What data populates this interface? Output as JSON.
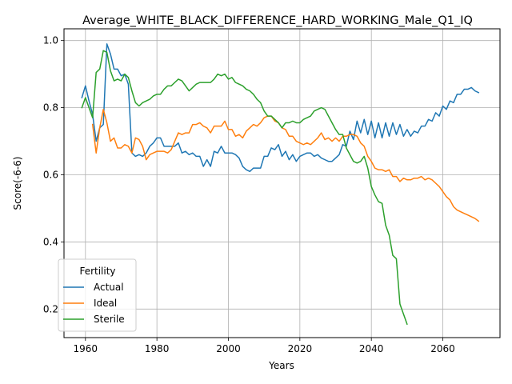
{
  "chart_data": {
    "type": "line",
    "title": "Average_WHITE_BLACK_DIFFERENCE_HARD_WORKING_Male_Q1_IQ",
    "xlabel": "Years",
    "ylabel": "Score(-6-6)",
    "xlim": [
      1954,
      2076
    ],
    "ylim": [
      0.115,
      1.035
    ],
    "xticks": [
      1960,
      1980,
      2000,
      2020,
      2040,
      2060
    ],
    "yticks": [
      0.2,
      0.4,
      0.6,
      0.8,
      1.0
    ],
    "ytick_labels": [
      "0.2",
      "0.4",
      "0.6",
      "0.8",
      "1.0"
    ],
    "grid": true,
    "legend": {
      "title": "Fertility",
      "placement": "lower-left"
    },
    "series": [
      {
        "name": "Actual",
        "color": "#1f77b4",
        "x": [
          1959,
          1960,
          1961,
          1962,
          1963,
          1964,
          1965,
          1966,
          1967,
          1968,
          1969,
          1970,
          1971,
          1972,
          1973,
          1974,
          1975,
          1976,
          1977,
          1978,
          1979,
          1980,
          1981,
          1982,
          1983,
          1984,
          1985,
          1986,
          1987,
          1988,
          1989,
          1990,
          1991,
          1992,
          1993,
          1994,
          1995,
          1996,
          1997,
          1998,
          1999,
          2000,
          2001,
          2002,
          2003,
          2004,
          2005,
          2006,
          2007,
          2008,
          2009,
          2010,
          2011,
          2012,
          2013,
          2014,
          2015,
          2016,
          2017,
          2018,
          2019,
          2020,
          2021,
          2022,
          2023,
          2024,
          2025,
          2026,
          2027,
          2028,
          2029,
          2030,
          2031,
          2032,
          2033,
          2034,
          2035,
          2036,
          2037,
          2038,
          2039,
          2040,
          2041,
          2042,
          2043,
          2044,
          2045,
          2046,
          2047,
          2048,
          2049,
          2050,
          2051,
          2052,
          2053,
          2054,
          2055,
          2056,
          2057,
          2058,
          2059,
          2060,
          2061,
          2062,
          2063,
          2064,
          2065,
          2066,
          2067,
          2068,
          2069,
          2070
        ],
        "y": [
          0.83,
          0.865,
          0.82,
          0.78,
          0.7,
          0.74,
          0.75,
          0.99,
          0.96,
          0.915,
          0.915,
          0.895,
          0.9,
          0.87,
          0.665,
          0.655,
          0.66,
          0.655,
          0.665,
          0.685,
          0.695,
          0.71,
          0.71,
          0.685,
          0.685,
          0.685,
          0.685,
          0.695,
          0.665,
          0.67,
          0.66,
          0.665,
          0.655,
          0.655,
          0.625,
          0.645,
          0.625,
          0.67,
          0.665,
          0.685,
          0.665,
          0.665,
          0.665,
          0.66,
          0.65,
          0.625,
          0.615,
          0.61,
          0.62,
          0.62,
          0.62,
          0.655,
          0.655,
          0.68,
          0.675,
          0.69,
          0.655,
          0.67,
          0.645,
          0.66,
          0.64,
          0.655,
          0.66,
          0.665,
          0.665,
          0.655,
          0.66,
          0.65,
          0.645,
          0.64,
          0.64,
          0.65,
          0.66,
          0.69,
          0.685,
          0.73,
          0.705,
          0.76,
          0.725,
          0.765,
          0.72,
          0.76,
          0.71,
          0.755,
          0.71,
          0.755,
          0.715,
          0.755,
          0.72,
          0.75,
          0.715,
          0.735,
          0.715,
          0.73,
          0.725,
          0.745,
          0.745,
          0.765,
          0.76,
          0.785,
          0.775,
          0.805,
          0.795,
          0.82,
          0.815,
          0.84,
          0.84,
          0.855,
          0.855,
          0.86,
          0.85,
          0.845
        ]
      },
      {
        "name": "Ideal",
        "color": "#ff7f0e",
        "x": [
          1962,
          1963,
          1964,
          1965,
          1966,
          1967,
          1968,
          1969,
          1970,
          1971,
          1972,
          1973,
          1974,
          1975,
          1976,
          1977,
          1978,
          1979,
          1980,
          1981,
          1982,
          1983,
          1984,
          1985,
          1986,
          1987,
          1988,
          1989,
          1990,
          1991,
          1992,
          1993,
          1994,
          1995,
          1996,
          1997,
          1998,
          1999,
          2000,
          2001,
          2002,
          2003,
          2004,
          2005,
          2006,
          2007,
          2008,
          2009,
          2010,
          2011,
          2012,
          2013,
          2014,
          2015,
          2016,
          2017,
          2018,
          2019,
          2020,
          2021,
          2022,
          2023,
          2024,
          2025,
          2026,
          2027,
          2028,
          2029,
          2030,
          2031,
          2032,
          2033,
          2034,
          2035,
          2036,
          2037,
          2038,
          2039,
          2040,
          2041,
          2042,
          2043,
          2044,
          2045,
          2046,
          2047,
          2048,
          2049,
          2050,
          2051,
          2052,
          2053,
          2054,
          2055,
          2056,
          2057,
          2058,
          2059,
          2060,
          2061,
          2062,
          2063,
          2064,
          2065,
          2066,
          2067,
          2068,
          2069,
          2070
        ],
        "y": [
          0.75,
          0.665,
          0.74,
          0.795,
          0.755,
          0.7,
          0.71,
          0.68,
          0.68,
          0.69,
          0.685,
          0.665,
          0.71,
          0.705,
          0.685,
          0.645,
          0.66,
          0.665,
          0.67,
          0.67,
          0.67,
          0.665,
          0.675,
          0.7,
          0.725,
          0.72,
          0.725,
          0.725,
          0.75,
          0.75,
          0.755,
          0.745,
          0.74,
          0.725,
          0.745,
          0.745,
          0.745,
          0.76,
          0.735,
          0.735,
          0.715,
          0.72,
          0.71,
          0.73,
          0.74,
          0.75,
          0.745,
          0.755,
          0.77,
          0.775,
          0.775,
          0.76,
          0.755,
          0.74,
          0.735,
          0.715,
          0.715,
          0.7,
          0.695,
          0.69,
          0.695,
          0.69,
          0.7,
          0.71,
          0.725,
          0.705,
          0.71,
          0.7,
          0.71,
          0.7,
          0.715,
          0.715,
          0.72,
          0.72,
          0.715,
          0.695,
          0.685,
          0.655,
          0.64,
          0.62,
          0.615,
          0.615,
          0.61,
          0.615,
          0.595,
          0.595,
          0.58,
          0.59,
          0.585,
          0.585,
          0.59,
          0.59,
          0.595,
          0.585,
          0.59,
          0.585,
          0.575,
          0.565,
          0.55,
          0.535,
          0.525,
          0.505,
          0.495,
          0.49,
          0.485,
          0.48,
          0.475,
          0.47,
          0.462
        ]
      },
      {
        "name": "Sterile",
        "color": "#2ca02c",
        "x": [
          1959,
          1960,
          1961,
          1962,
          1963,
          1964,
          1965,
          1966,
          1967,
          1968,
          1969,
          1970,
          1971,
          1972,
          1973,
          1974,
          1975,
          1976,
          1977,
          1978,
          1979,
          1980,
          1981,
          1982,
          1983,
          1984,
          1985,
          1986,
          1987,
          1988,
          1989,
          1990,
          1991,
          1992,
          1993,
          1994,
          1995,
          1996,
          1997,
          1998,
          1999,
          2000,
          2001,
          2002,
          2003,
          2004,
          2005,
          2006,
          2007,
          2008,
          2009,
          2010,
          2011,
          2012,
          2013,
          2014,
          2015,
          2016,
          2017,
          2018,
          2019,
          2020,
          2021,
          2022,
          2023,
          2024,
          2025,
          2026,
          2027,
          2028,
          2029,
          2030,
          2031,
          2032,
          2033,
          2034,
          2035,
          2036,
          2037,
          2038,
          2039,
          2040,
          2041,
          2042,
          2043,
          2044,
          2045,
          2046,
          2047,
          2048,
          2049,
          2050
        ],
        "y": [
          0.8,
          0.83,
          0.8,
          0.77,
          0.905,
          0.915,
          0.97,
          0.965,
          0.91,
          0.88,
          0.885,
          0.88,
          0.9,
          0.89,
          0.85,
          0.815,
          0.805,
          0.815,
          0.82,
          0.825,
          0.835,
          0.84,
          0.84,
          0.855,
          0.865,
          0.865,
          0.875,
          0.885,
          0.88,
          0.865,
          0.85,
          0.86,
          0.87,
          0.875,
          0.875,
          0.875,
          0.875,
          0.885,
          0.9,
          0.895,
          0.9,
          0.885,
          0.89,
          0.875,
          0.87,
          0.865,
          0.855,
          0.85,
          0.84,
          0.825,
          0.815,
          0.79,
          0.775,
          0.775,
          0.765,
          0.755,
          0.74,
          0.755,
          0.755,
          0.76,
          0.755,
          0.755,
          0.765,
          0.77,
          0.775,
          0.79,
          0.795,
          0.8,
          0.795,
          0.775,
          0.755,
          0.735,
          0.72,
          0.72,
          0.68,
          0.66,
          0.64,
          0.635,
          0.64,
          0.655,
          0.62,
          0.565,
          0.54,
          0.52,
          0.515,
          0.45,
          0.42,
          0.36,
          0.35,
          0.215,
          0.185,
          0.155
        ]
      }
    ]
  }
}
